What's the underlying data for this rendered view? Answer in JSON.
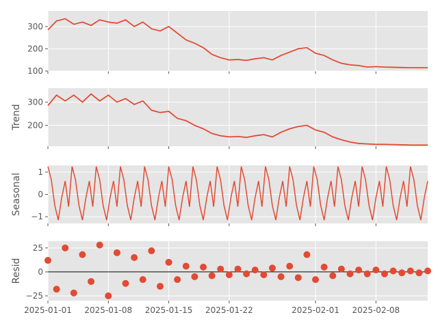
{
  "chart_data": [
    {
      "type": "line",
      "panel": "observed",
      "ylabel": "",
      "ylim": [
        100,
        370
      ],
      "yticks": [
        100,
        200,
        300
      ],
      "ytick_labels": [
        "100",
        "200",
        "300"
      ],
      "xlim": [
        "2025-01-01",
        "2025-02-14"
      ],
      "series": [
        {
          "color": "#e24a33",
          "x": [
            "2025-01-01",
            "2025-01-02",
            "2025-01-03",
            "2025-01-04",
            "2025-01-05",
            "2025-01-06",
            "2025-01-07",
            "2025-01-08",
            "2025-01-09",
            "2025-01-10",
            "2025-01-11",
            "2025-01-12",
            "2025-01-13",
            "2025-01-14",
            "2025-01-15",
            "2025-01-16",
            "2025-01-17",
            "2025-01-18",
            "2025-01-19",
            "2025-01-20",
            "2025-01-21",
            "2025-01-22",
            "2025-01-23",
            "2025-01-24",
            "2025-01-25",
            "2025-01-26",
            "2025-01-27",
            "2025-01-28",
            "2025-01-29",
            "2025-01-30",
            "2025-01-31",
            "2025-02-01",
            "2025-02-02",
            "2025-02-03",
            "2025-02-04",
            "2025-02-05",
            "2025-02-06",
            "2025-02-07",
            "2025-02-08",
            "2025-02-09",
            "2025-02-10",
            "2025-02-11",
            "2025-02-12",
            "2025-02-13",
            "2025-02-14"
          ],
          "y": [
            285,
            325,
            335,
            310,
            320,
            305,
            330,
            320,
            315,
            330,
            300,
            320,
            290,
            280,
            300,
            270,
            240,
            225,
            205,
            175,
            160,
            150,
            152,
            148,
            155,
            160,
            150,
            170,
            185,
            200,
            205,
            180,
            170,
            150,
            135,
            128,
            125,
            118,
            120,
            118,
            117,
            116,
            115,
            115,
            115
          ]
        }
      ]
    },
    {
      "type": "line",
      "panel": "trend",
      "ylabel": "Trend",
      "ylim": [
        110,
        360
      ],
      "yticks": [
        200,
        300
      ],
      "ytick_labels": [
        "200",
        "300"
      ],
      "xlim": [
        "2025-01-01",
        "2025-02-14"
      ],
      "series": [
        {
          "color": "#e24a33",
          "x": [
            "2025-01-01",
            "2025-01-02",
            "2025-01-03",
            "2025-01-04",
            "2025-01-05",
            "2025-01-06",
            "2025-01-07",
            "2025-01-08",
            "2025-01-09",
            "2025-01-10",
            "2025-01-11",
            "2025-01-12",
            "2025-01-13",
            "2025-01-14",
            "2025-01-15",
            "2025-01-16",
            "2025-01-17",
            "2025-01-18",
            "2025-01-19",
            "2025-01-20",
            "2025-01-21",
            "2025-01-22",
            "2025-01-23",
            "2025-01-24",
            "2025-01-25",
            "2025-01-26",
            "2025-01-27",
            "2025-01-28",
            "2025-01-29",
            "2025-01-30",
            "2025-01-31",
            "2025-02-01",
            "2025-02-02",
            "2025-02-03",
            "2025-02-04",
            "2025-02-05",
            "2025-02-06",
            "2025-02-07",
            "2025-02-08",
            "2025-02-09",
            "2025-02-10",
            "2025-02-11",
            "2025-02-12",
            "2025-02-13",
            "2025-02-14"
          ],
          "y": [
            285,
            330,
            305,
            330,
            300,
            335,
            305,
            330,
            300,
            315,
            290,
            305,
            265,
            255,
            260,
            230,
            220,
            200,
            185,
            165,
            155,
            150,
            152,
            148,
            155,
            160,
            150,
            170,
            185,
            195,
            200,
            180,
            170,
            150,
            138,
            128,
            122,
            120,
            118,
            118,
            117,
            116,
            115,
            115,
            115
          ]
        }
      ]
    },
    {
      "type": "line",
      "panel": "seasonal",
      "ylabel": "Seasonal",
      "ylim": [
        -1.3,
        1.3
      ],
      "yticks": [
        -1,
        0,
        1
      ],
      "ytick_labels": [
        "−1",
        "0",
        "1"
      ],
      "xlim": [
        "2025-01-01",
        "2025-02-14"
      ],
      "series": [
        {
          "color": "#e24a33",
          "x": [
            "2025-01-01",
            "2025-02-14"
          ],
          "y": [
            1.25,
            -1.15
          ],
          "pattern": [
            1.25,
            0.65,
            -0.5,
            -1.15,
            -0.15,
            0.6,
            -0.55
          ]
        }
      ]
    },
    {
      "type": "scatter",
      "panel": "resid",
      "ylabel": "Resid",
      "ylim": [
        -30,
        32
      ],
      "yticks": [
        -25,
        0,
        25
      ],
      "ytick_labels": [
        "−25",
        "0",
        "25"
      ],
      "xlim": [
        "2025-01-01",
        "2025-02-14"
      ],
      "xticks": [
        "2025-01-01",
        "2025-01-08",
        "2025-01-15",
        "2025-01-22",
        "2025-02-01",
        "2025-02-08"
      ],
      "xtick_labels": [
        "2025-01-01",
        "2025-01-08",
        "2025-01-15",
        "2025-01-22",
        "2025-02-01",
        "2025-02-08"
      ],
      "series": [
        {
          "color": "#e24a33",
          "x": [
            "2025-01-01",
            "2025-01-02",
            "2025-01-03",
            "2025-01-04",
            "2025-01-05",
            "2025-01-06",
            "2025-01-07",
            "2025-01-08",
            "2025-01-09",
            "2025-01-10",
            "2025-01-11",
            "2025-01-12",
            "2025-01-13",
            "2025-01-14",
            "2025-01-15",
            "2025-01-16",
            "2025-01-17",
            "2025-01-18",
            "2025-01-19",
            "2025-01-20",
            "2025-01-21",
            "2025-01-22",
            "2025-01-23",
            "2025-01-24",
            "2025-01-25",
            "2025-01-26",
            "2025-01-27",
            "2025-01-28",
            "2025-01-29",
            "2025-01-30",
            "2025-01-31",
            "2025-02-01",
            "2025-02-02",
            "2025-02-03",
            "2025-02-04",
            "2025-02-05",
            "2025-02-06",
            "2025-02-07",
            "2025-02-08",
            "2025-02-09",
            "2025-02-10",
            "2025-02-11",
            "2025-02-12",
            "2025-02-13",
            "2025-02-14"
          ],
          "y": [
            12,
            -18,
            25,
            -22,
            18,
            -10,
            28,
            -25,
            20,
            -12,
            15,
            -8,
            22,
            -15,
            10,
            -8,
            6,
            -5,
            5,
            -4,
            3,
            -3,
            3,
            -2,
            2,
            -3,
            4,
            -5,
            6,
            -6,
            18,
            -8,
            5,
            -4,
            3,
            -2,
            2,
            -2,
            2,
            -2,
            1,
            -1,
            1,
            -1,
            1
          ]
        }
      ]
    }
  ]
}
